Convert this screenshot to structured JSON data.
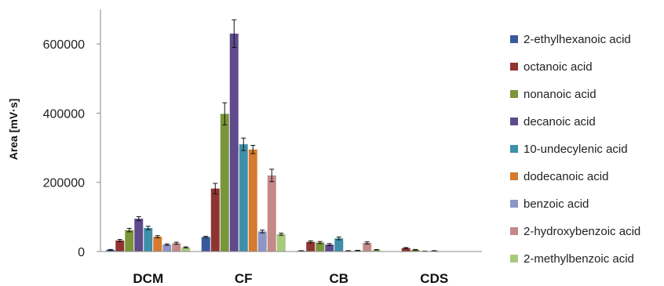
{
  "chart_data": {
    "type": "bar",
    "ylabel": "Area [mV·s]",
    "ylim": [
      0,
      700000
    ],
    "yticks": [
      0,
      200000,
      400000,
      600000
    ],
    "error_bars": true,
    "legend_position": "right",
    "grid": false,
    "categories": [
      "DCM",
      "CF",
      "CB",
      "CDS"
    ],
    "series": [
      {
        "name": "2-ethylhexanoic acid",
        "color": "#3a5a9e",
        "values": [
          5000,
          42000,
          2000,
          0
        ],
        "errors": [
          1000,
          2000,
          500,
          0
        ]
      },
      {
        "name": "octanoic acid",
        "color": "#8e3431",
        "values": [
          32000,
          182000,
          28000,
          10000
        ],
        "errors": [
          3000,
          15000,
          3000,
          1500
        ]
      },
      {
        "name": "nonanoic acid",
        "color": "#7a963b",
        "values": [
          62000,
          398000,
          26000,
          5000
        ],
        "errors": [
          5000,
          32000,
          3000,
          1000
        ]
      },
      {
        "name": "decanoic acid",
        "color": "#5f4a8b",
        "values": [
          95000,
          630000,
          20000,
          1000
        ],
        "errors": [
          6000,
          40000,
          3000,
          300
        ]
      },
      {
        "name": "10-undecylenic acid",
        "color": "#3e8fa9",
        "values": [
          68000,
          310000,
          38000,
          2000
        ],
        "errors": [
          5000,
          18000,
          4000,
          500
        ]
      },
      {
        "name": "dodecanoic acid",
        "color": "#d57a2f",
        "values": [
          43000,
          295000,
          2000,
          0
        ],
        "errors": [
          3000,
          12000,
          500,
          0
        ]
      },
      {
        "name": "benzoic acid",
        "color": "#8d96c4",
        "values": [
          20000,
          58000,
          3000,
          0
        ],
        "errors": [
          2000,
          4000,
          500,
          0
        ]
      },
      {
        "name": "2-hydroxybenzoic acid",
        "color": "#c48a89",
        "values": [
          24000,
          220000,
          25000,
          0
        ],
        "errors": [
          3000,
          18000,
          3000,
          0
        ]
      },
      {
        "name": "2-methylbenzoic acid",
        "color": "#a9c97d",
        "values": [
          12000,
          50000,
          5000,
          0
        ],
        "errors": [
          1500,
          3000,
          800,
          0
        ]
      }
    ]
  }
}
